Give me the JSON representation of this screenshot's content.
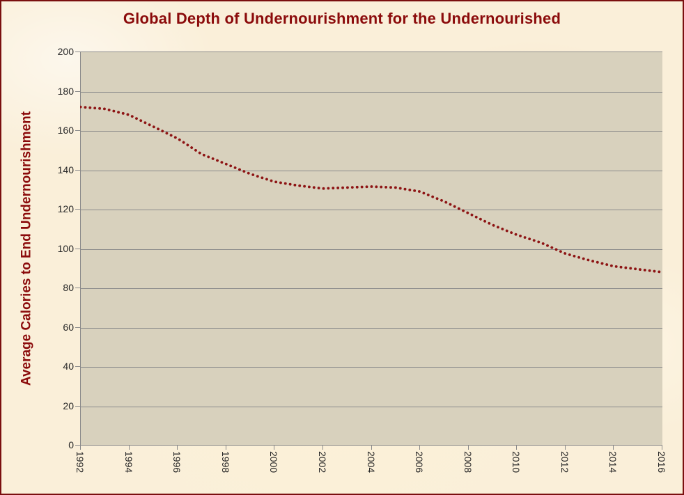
{
  "title": "Global Depth of Undernourishment for the Undernourished",
  "y_axis": {
    "title": "Average Calories to End Undernourishment",
    "tick_labels": [
      "0",
      "20",
      "40",
      "60",
      "80",
      "100",
      "120",
      "140",
      "160",
      "180",
      "200"
    ],
    "tick_values": [
      0,
      20,
      40,
      60,
      80,
      100,
      120,
      140,
      160,
      180,
      200
    ]
  },
  "x_axis": {
    "tick_labels": [
      "1992",
      "1994",
      "1996",
      "1998",
      "2000",
      "2002",
      "2004",
      "2006",
      "2008",
      "2010",
      "2012",
      "2014",
      "2016"
    ],
    "tick_values": [
      1992,
      1994,
      1996,
      1998,
      2000,
      2002,
      2004,
      2006,
      2008,
      2010,
      2012,
      2014,
      2016
    ]
  },
  "chart_data": {
    "type": "line",
    "line_style": "dotted",
    "title": "Global Depth of Undernourishment for the Undernourished",
    "xlabel": "",
    "ylabel": "Average Calories to End Undernourishment",
    "xlim": [
      1992,
      2016
    ],
    "ylim": [
      0,
      200
    ],
    "grid": "horizontal",
    "legend_position": "none",
    "x": [
      1992,
      1993,
      1994,
      1995,
      1996,
      1997,
      1998,
      1999,
      2000,
      2001,
      2002,
      2003,
      2004,
      2005,
      2006,
      2007,
      2008,
      2009,
      2010,
      2011,
      2012,
      2013,
      2014,
      2015,
      2016
    ],
    "values": [
      172,
      171,
      168,
      162,
      156,
      148,
      143,
      138,
      134,
      132,
      130.5,
      131,
      131.5,
      131,
      129,
      124,
      118,
      112,
      107,
      103,
      97.5,
      94,
      91,
      89.5,
      88
    ]
  },
  "colors": {
    "title_text": "#8B0B0B",
    "series_dots": "#8D1414",
    "gridlines": "#8a8a8a",
    "page_background": "#FAEFD9",
    "plot_background": "#D8D1BD",
    "tick_text": "#262626",
    "page_border": "#7A0F0F"
  }
}
